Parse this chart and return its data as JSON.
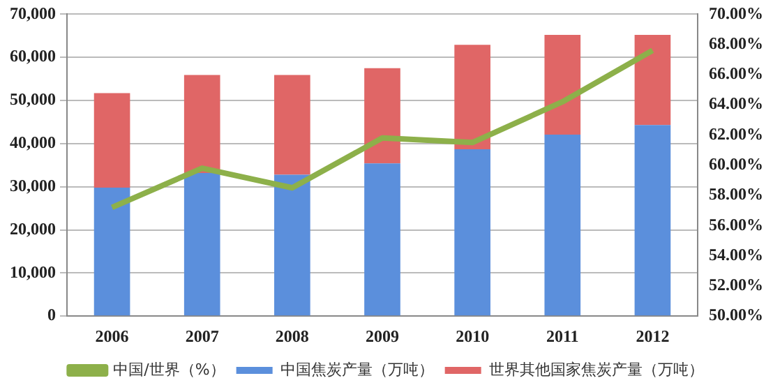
{
  "chart_data": {
    "type": "bar",
    "stacked": true,
    "categories": [
      "2006",
      "2007",
      "2008",
      "2009",
      "2010",
      "2011",
      "2012"
    ],
    "series": [
      {
        "name": "中国焦炭产量（万吨）",
        "color": "#5b8fdc",
        "values": [
          29800,
          33200,
          32800,
          35400,
          38700,
          42100,
          44300
        ]
      },
      {
        "name": "世界其他国家焦炭产量（万吨）",
        "color": "#e06666",
        "values": [
          21900,
          22700,
          23100,
          22100,
          24200,
          23100,
          20900
        ]
      },
      {
        "name": "中国/世界（%）",
        "type": "line",
        "axis": "y2",
        "color": "#8db04a",
        "values": [
          57.2,
          59.8,
          58.5,
          61.8,
          61.5,
          64.2,
          67.6
        ]
      }
    ],
    "ylim": [
      0,
      70000
    ],
    "yticks": [
      0,
      {
        "value": 10000,
        "label": "10,000"
      },
      {
        "value": 20000,
        "label": "20,000"
      },
      {
        "value": 30000,
        "label": "30,000"
      },
      {
        "value": 40000,
        "label": "40,000"
      },
      {
        "value": 50000,
        "label": "50,000"
      },
      {
        "value": 60000,
        "label": "60,000"
      },
      {
        "value": 70000,
        "label": "70,000"
      }
    ],
    "y2lim": [
      50,
      70
    ],
    "y2ticks": [
      {
        "value": 50,
        "label": "50.00%"
      },
      {
        "value": 52,
        "label": "52.00%"
      },
      {
        "value": 54,
        "label": "54.00%"
      },
      {
        "value": 56,
        "label": "56.00%"
      },
      {
        "value": 58,
        "label": "58.00%"
      },
      {
        "value": 60,
        "label": "60.00%"
      },
      {
        "value": 62,
        "label": "62.00%"
      },
      {
        "value": 64,
        "label": "64.00%"
      },
      {
        "value": 66,
        "label": "66.00%"
      },
      {
        "value": 68,
        "label": "68.00%"
      },
      {
        "value": 70,
        "label": "70.00%"
      }
    ],
    "grid": "y",
    "legend": "bottom",
    "marker": "none"
  }
}
